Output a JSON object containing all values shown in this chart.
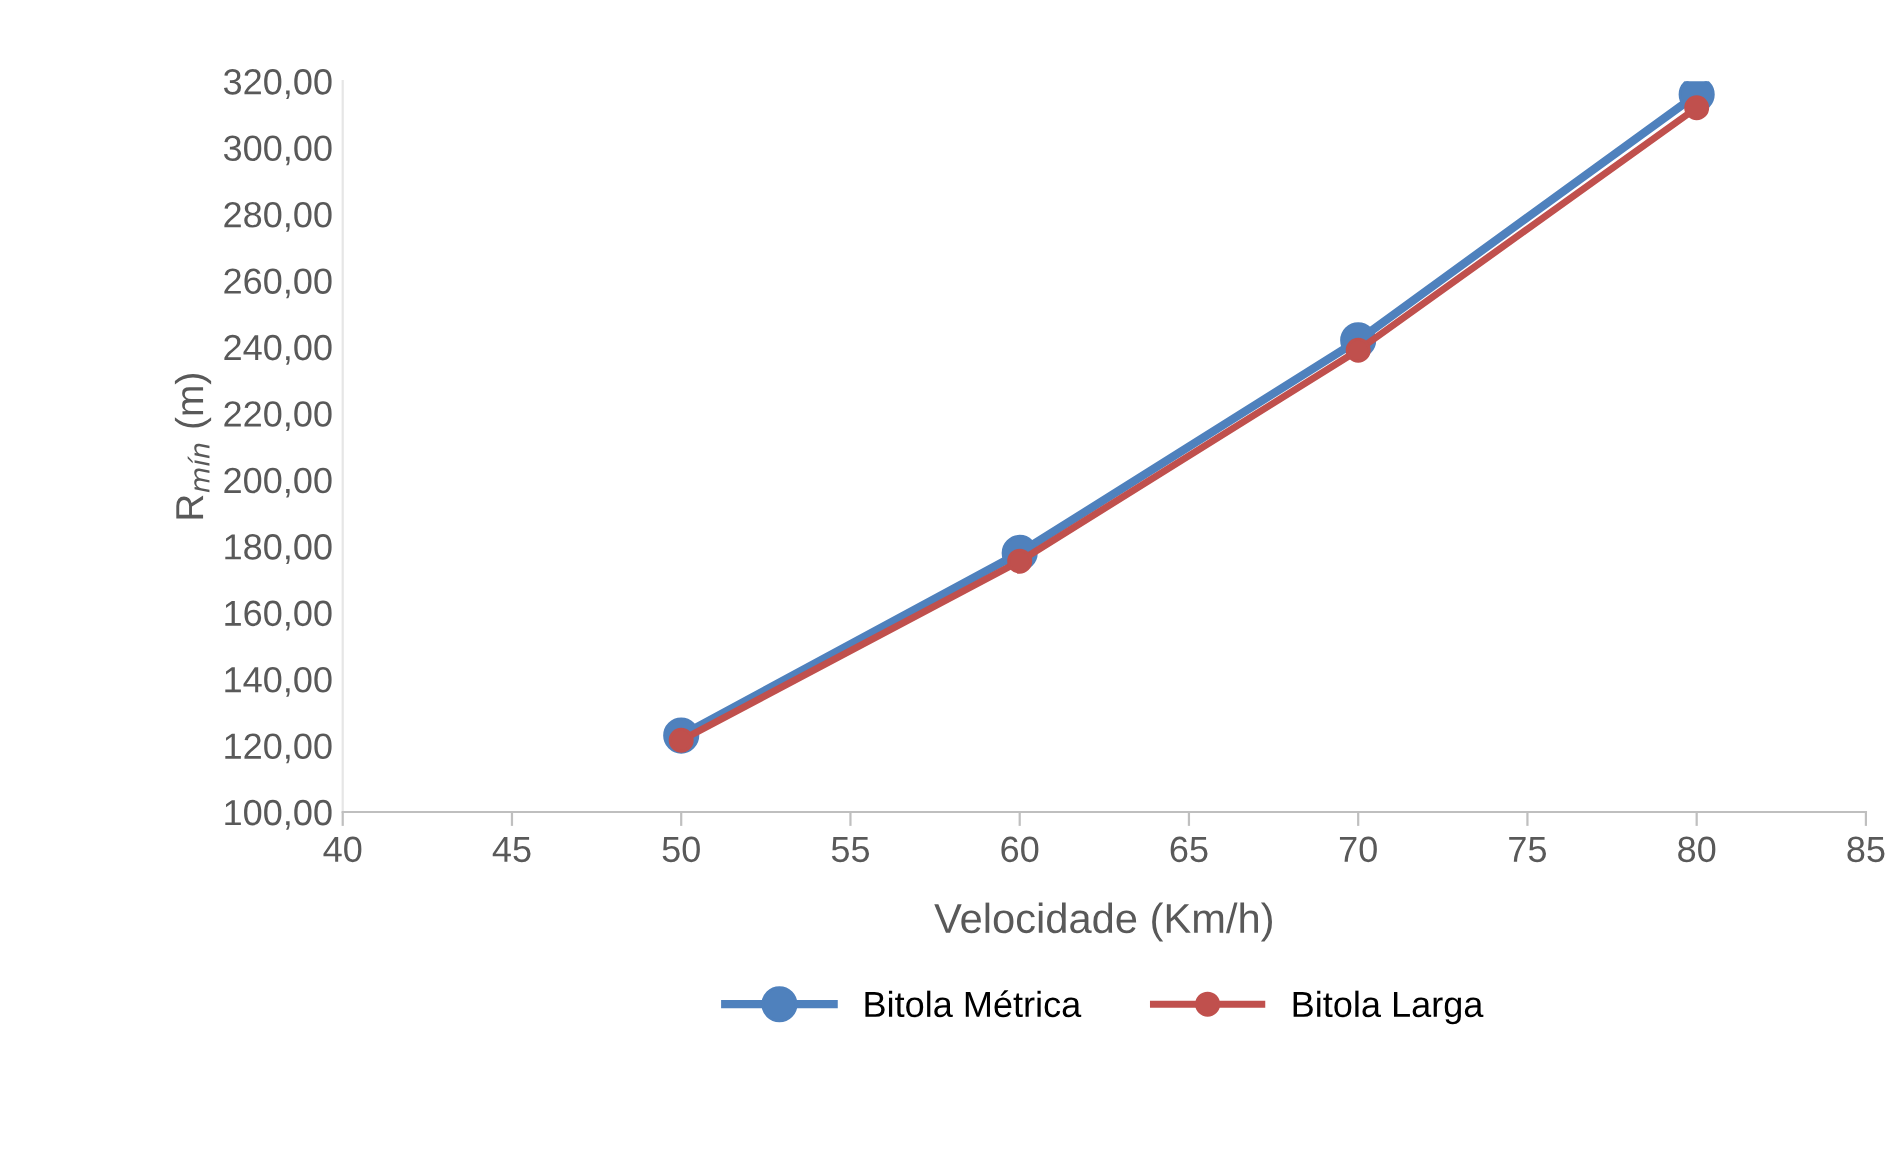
{
  "chart_data": {
    "type": "line",
    "xlabel": "Velocidade (Km/h)",
    "ylabel": "R$_{mín}$ (m)",
    "x": [
      50,
      60,
      70,
      80
    ],
    "series": [
      {
        "name": "Bitola Métrica",
        "color": "#4f81bd",
        "values": [
          123,
          178,
          242,
          316
        ]
      },
      {
        "name": "Bitola Larga",
        "color": "#c0504d",
        "values": [
          121.6,
          175.5,
          239,
          312
        ]
      }
    ],
    "xlim": [
      40,
      85
    ],
    "xticks": [
      40,
      45,
      50,
      55,
      60,
      65,
      70,
      75,
      80,
      85
    ],
    "ylim": [
      100,
      320
    ],
    "yticks": [
      {
        "value": 100,
        "label": "100,00"
      },
      {
        "value": 120,
        "label": "120,00"
      },
      {
        "value": 140,
        "label": "140,00"
      },
      {
        "value": 160,
        "label": "160,00"
      },
      {
        "value": 180,
        "label": "180,00"
      },
      {
        "value": 200,
        "label": "200,00"
      },
      {
        "value": 220,
        "label": "220,00"
      },
      {
        "value": 240,
        "label": "240,00"
      },
      {
        "value": 260,
        "label": "260,00"
      },
      {
        "value": 280,
        "label": "280,00"
      },
      {
        "value": 300,
        "label": "300,00"
      },
      {
        "value": 320,
        "label": "320,00"
      }
    ],
    "grid": false,
    "legend": "bottom",
    "marker": "circle",
    "line_style": "solid"
  }
}
